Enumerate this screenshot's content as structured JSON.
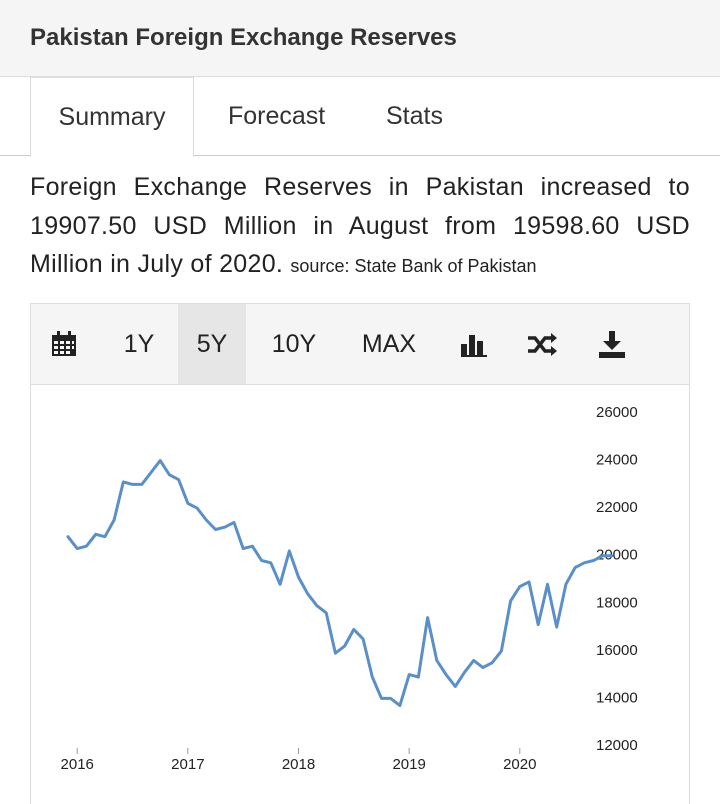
{
  "header": {
    "title": "Pakistan Foreign Exchange Reserves"
  },
  "tabs": [
    "Summary",
    "Forecast",
    "Stats"
  ],
  "summary": {
    "text": "Foreign Exchange Reserves in Pakistan increased to 19907.50 USD Million in August from 19598.60 USD Million in July of 2020.",
    "source": "source: State Bank of Pakistan"
  },
  "toolbar": [
    "1Y",
    "5Y",
    "10Y",
    "MAX"
  ],
  "chart_data": {
    "type": "line",
    "categories": [
      null,
      "2016",
      null,
      null,
      null,
      null,
      null,
      null,
      null,
      null,
      null,
      null,
      null,
      "2017",
      null,
      null,
      null,
      null,
      null,
      null,
      null,
      null,
      null,
      null,
      null,
      "2018",
      null,
      null,
      null,
      null,
      null,
      null,
      null,
      null,
      null,
      null,
      null,
      "2019",
      null,
      null,
      null,
      null,
      null,
      null,
      null,
      null,
      null,
      null,
      null,
      "2020",
      null,
      null,
      null,
      null,
      null,
      null,
      null,
      null,
      null,
      null
    ],
    "values": [
      20800,
      20300,
      20400,
      20900,
      20800,
      21500,
      23100,
      23000,
      23000,
      23500,
      24000,
      23400,
      23200,
      22200,
      22000,
      21500,
      21100,
      21200,
      21400,
      20300,
      20400,
      19800,
      19700,
      18800,
      20200,
      19100,
      18400,
      17900,
      17600,
      15900,
      16200,
      16900,
      16500,
      14900,
      14000,
      14000,
      13700,
      15000,
      14900,
      17400,
      15600,
      15000,
      14500,
      15100,
      15600,
      15300,
      15500,
      16000,
      18100,
      18700,
      18900,
      17100,
      18800,
      17000,
      18800,
      19500,
      19700,
      19800,
      20000,
      20000
    ],
    "color": "#5b8fc7",
    "ylim": [
      12000,
      26000
    ],
    "yticks": [
      12000,
      14000,
      16000,
      18000,
      20000,
      22000,
      24000,
      26000
    ]
  }
}
